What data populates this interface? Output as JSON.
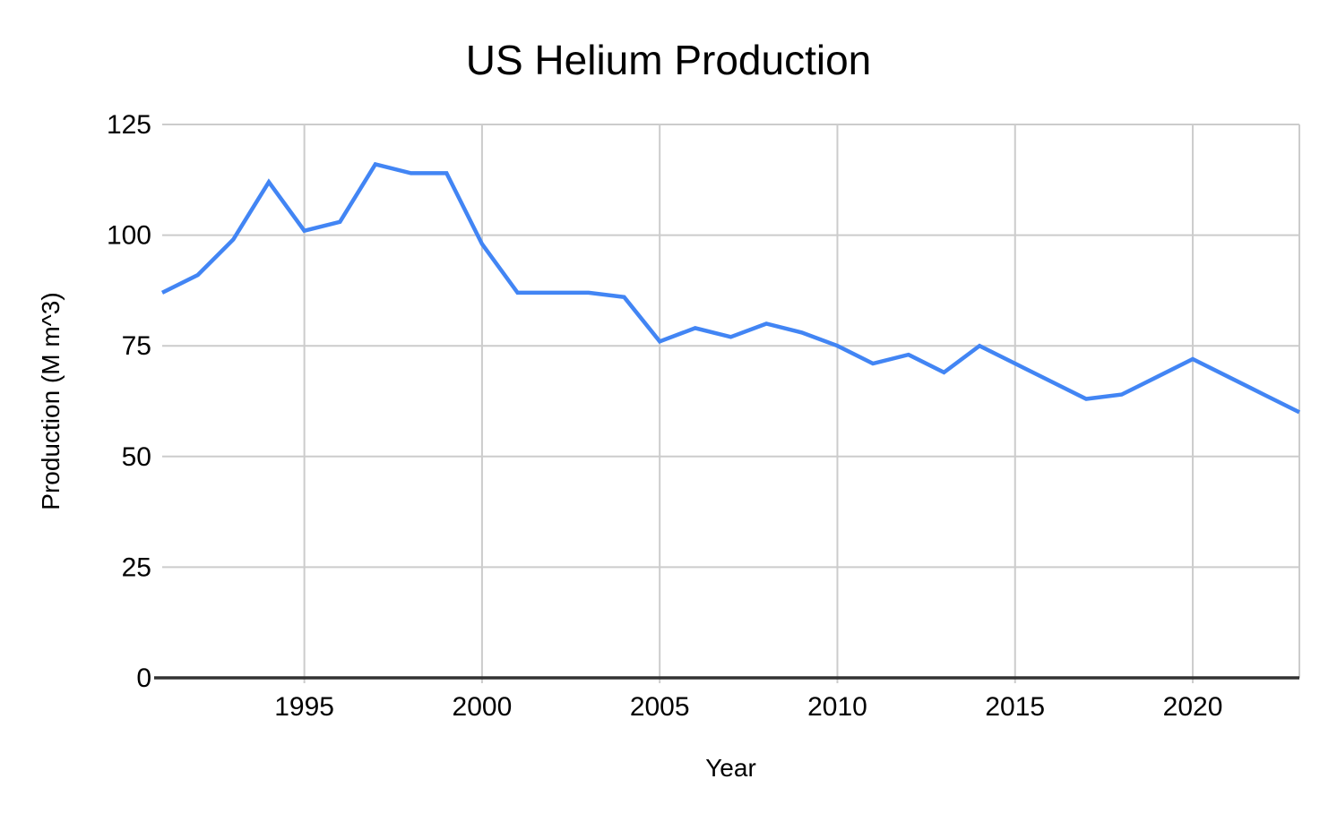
{
  "chart_data": {
    "type": "line",
    "title": "US Helium Production",
    "xlabel": "Year",
    "ylabel": "Production (M m^3)",
    "x": [
      1991,
      1992,
      1993,
      1994,
      1995,
      1996,
      1997,
      1998,
      1999,
      2000,
      2001,
      2002,
      2003,
      2004,
      2005,
      2006,
      2007,
      2008,
      2009,
      2010,
      2011,
      2012,
      2013,
      2014,
      2015,
      2016,
      2017,
      2018,
      2019,
      2020,
      2021,
      2022,
      2023
    ],
    "values": [
      87,
      91,
      99,
      112,
      101,
      103,
      116,
      114,
      114,
      98,
      87,
      87,
      87,
      86,
      76,
      79,
      77,
      80,
      78,
      75,
      71,
      73,
      69,
      75,
      71,
      67,
      63,
      64,
      68,
      72,
      68,
      64,
      60
    ],
    "xlim": [
      1991,
      2023
    ],
    "ylim": [
      0,
      125
    ],
    "xticks": [
      1995,
      2000,
      2005,
      2010,
      2015,
      2020
    ],
    "yticks": [
      0,
      25,
      50,
      75,
      100,
      125
    ],
    "grid": true,
    "legend": "none",
    "line_color": "#4285f4",
    "gridline_color": "#cccccc",
    "axis_color": "#333333",
    "text_color": "#000000",
    "background_color": "#ffffff"
  }
}
